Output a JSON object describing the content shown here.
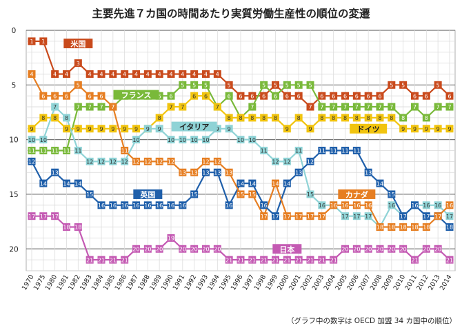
{
  "title": "主要先進７カ国の時間あたり実質労働生産性の順位の変遷",
  "note": "（グラフ中の数字は OECD 加盟 34 カ国中の順位）",
  "chart_data": {
    "type": "line",
    "title": "主要先進７カ国の時間あたり実質労働生産性の順位の変遷",
    "x": [
      "1970",
      "1975",
      "1980",
      "1981",
      "1982",
      "1983",
      "1984",
      "1985",
      "1986",
      "1987",
      "1988",
      "1989",
      "1990",
      "1991",
      "1992",
      "1993",
      "1994",
      "1995",
      "1996",
      "1997",
      "1998",
      "1999",
      "2000",
      "2001",
      "2002",
      "2003",
      "2004",
      "2005",
      "2006",
      "2007",
      "2008",
      "2009",
      "2010",
      "2011",
      "2012",
      "2013",
      "2014"
    ],
    "ylim": [
      0,
      22
    ],
    "y_inverted": true,
    "y_ticks": [
      0,
      5,
      10,
      15,
      20
    ],
    "grid": true,
    "series": [
      {
        "name": "米国",
        "color": "#c94a1c",
        "values": [
          1,
          1,
          4,
          4,
          3,
          4,
          4,
          4,
          4,
          4,
          4,
          4,
          4,
          4,
          4,
          4,
          4,
          5,
          6,
          6,
          6,
          5,
          6,
          6,
          7,
          6,
          6,
          6,
          6,
          6,
          6,
          5,
          5,
          6,
          6,
          5,
          6
        ]
      },
      {
        "name": "フランス",
        "color": "#79b93a",
        "values": [
          11,
          11,
          11,
          11,
          7,
          7,
          7,
          7,
          6,
          6,
          6,
          6,
          6,
          5,
          5,
          5,
          7,
          6,
          8,
          7,
          5,
          6,
          5,
          5,
          5,
          7,
          7,
          7,
          7,
          7,
          7,
          7,
          8,
          7,
          8,
          7,
          7
        ]
      },
      {
        "name": "ドイツ",
        "color": "#f1c40f",
        "values": [
          9,
          8,
          8,
          9,
          9,
          9,
          9,
          9,
          9,
          9,
          9,
          8,
          7,
          7,
          6,
          6,
          7,
          8,
          8,
          8,
          8,
          8,
          9,
          8,
          9,
          8,
          8,
          8,
          8,
          8,
          8,
          8,
          9,
          9,
          9,
          9,
          9
        ]
      },
      {
        "name": "イタリア",
        "color": "#8fd3d6",
        "values": [
          10,
          10,
          7,
          8,
          11,
          12,
          12,
          12,
          12,
          10,
          9,
          9,
          10,
          10,
          10,
          10,
          9,
          9,
          10,
          10,
          11,
          12,
          12,
          11,
          15,
          16,
          16,
          17,
          17,
          17,
          18,
          16,
          17,
          16,
          16,
          16,
          17
        ]
      },
      {
        "name": "英国",
        "color": "#1f5faa",
        "values": [
          12,
          14,
          13,
          14,
          14,
          15,
          16,
          16,
          16,
          16,
          16,
          16,
          16,
          16,
          15,
          13,
          13,
          16,
          14,
          14,
          16,
          17,
          14,
          13,
          12,
          11,
          11,
          11,
          11,
          13,
          14,
          15,
          17,
          16,
          17,
          17,
          18
        ]
      },
      {
        "name": "カナダ",
        "color": "#e67e22",
        "values": [
          4,
          6,
          6,
          6,
          5,
          6,
          6,
          7,
          11,
          12,
          12,
          12,
          12,
          13,
          13,
          12,
          12,
          13,
          15,
          15,
          17,
          14,
          17,
          17,
          17,
          17,
          16,
          16,
          16,
          16,
          18,
          18,
          18,
          18,
          18,
          17,
          16
        ]
      },
      {
        "name": "日本",
        "color": "#c45ab3",
        "values": [
          17,
          17,
          17,
          18,
          18,
          21,
          21,
          21,
          21,
          20,
          20,
          20,
          19,
          20,
          20,
          20,
          20,
          21,
          21,
          21,
          21,
          21,
          21,
          21,
          21,
          21,
          21,
          20,
          20,
          20,
          20,
          20,
          20,
          21,
          20,
          20,
          21
        ]
      }
    ]
  }
}
